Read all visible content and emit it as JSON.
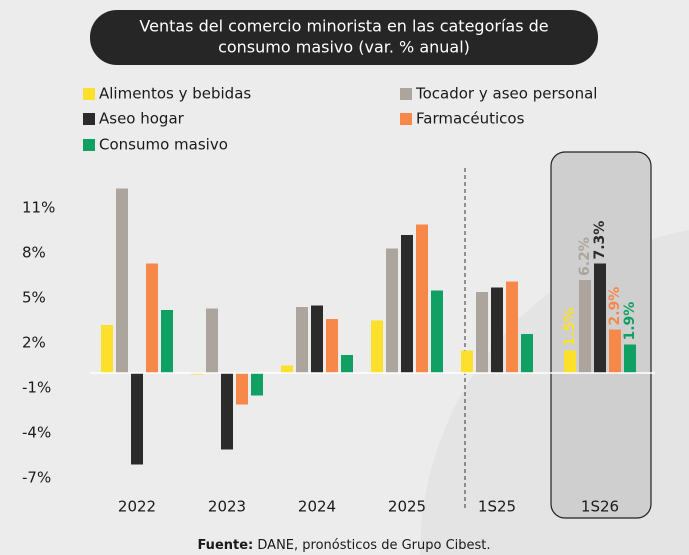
{
  "chart_data": {
    "type": "bar",
    "title": [
      "Ventas del comercio minorista en las categorías de",
      "consumo masivo (var. % anual)"
    ],
    "categories": [
      "2022",
      "2023",
      "2024",
      "2025",
      "1S25",
      "1S26"
    ],
    "series": [
      {
        "name": "Alimentos y bebidas",
        "color": "#fde02b",
        "values": [
          3.2,
          -0.1,
          0.5,
          3.5,
          1.5,
          1.5
        ],
        "value_labels": [
          null,
          null,
          null,
          null,
          null,
          "1.5%"
        ]
      },
      {
        "name": "Tocador y aseo personal",
        "color": "#aba59d",
        "values": [
          12.3,
          4.3,
          4.4,
          8.3,
          5.4,
          6.2
        ],
        "value_labels": [
          null,
          null,
          null,
          null,
          null,
          "6.2%"
        ]
      },
      {
        "name": "Aseo hogar",
        "color": "#2b2b2b",
        "values": [
          -6.1,
          -5.1,
          4.5,
          9.2,
          5.7,
          7.3
        ],
        "value_labels": [
          null,
          null,
          null,
          null,
          null,
          "7.3%"
        ]
      },
      {
        "name": "Farmacéuticos",
        "color": "#f6894a",
        "values": [
          7.3,
          -2.1,
          3.6,
          9.9,
          6.1,
          2.9
        ],
        "value_labels": [
          null,
          null,
          null,
          null,
          null,
          "2.9%"
        ]
      },
      {
        "name": "Consumo masivo",
        "color": "#11a063",
        "values": [
          4.2,
          -1.5,
          1.2,
          5.5,
          2.6,
          1.9
        ],
        "value_labels": [
          null,
          null,
          null,
          null,
          null,
          "1.9%"
        ]
      }
    ],
    "ylim": [
      -8,
      12.5
    ],
    "yticks": [
      {
        "value": 11,
        "label": "11%"
      },
      {
        "value": 8,
        "label": "8%"
      },
      {
        "value": 5,
        "label": "5%"
      },
      {
        "value": 2,
        "label": "2%"
      },
      {
        "value": -1,
        "label": "-1%"
      },
      {
        "value": -4,
        "label": "-4%"
      },
      {
        "value": -7,
        "label": "-7%"
      }
    ],
    "source": {
      "label": "Fuente:",
      "text": "DANE, pronósticos de Grupo Cibest."
    }
  }
}
